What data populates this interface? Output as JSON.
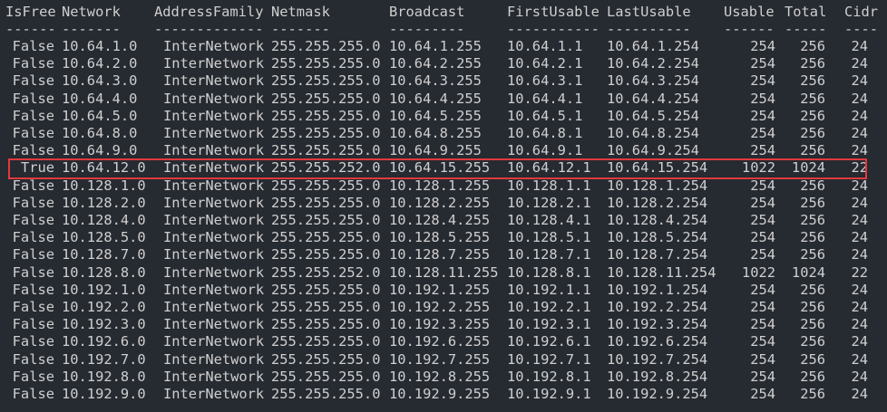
{
  "columns": [
    "IsFree",
    "Network",
    "AddressFamily",
    "Netmask",
    "Broadcast",
    "FirstUsable",
    "LastUsable",
    "Usable",
    "Total",
    "Cidr"
  ],
  "separators": [
    "------",
    "-------",
    "-------------",
    "-------",
    "---------",
    "-----------",
    "----------",
    "------",
    "-----",
    "----"
  ],
  "highlight_color": "#e0393e",
  "highlighted_row": 7,
  "rows": [
    [
      "False",
      "10.64.1.0",
      "InterNetwork",
      "255.255.255.0",
      "10.64.1.255",
      "10.64.1.1",
      "10.64.1.254",
      "254",
      "256",
      "24"
    ],
    [
      "False",
      "10.64.2.0",
      "InterNetwork",
      "255.255.255.0",
      "10.64.2.255",
      "10.64.2.1",
      "10.64.2.254",
      "254",
      "256",
      "24"
    ],
    [
      "False",
      "10.64.3.0",
      "InterNetwork",
      "255.255.255.0",
      "10.64.3.255",
      "10.64.3.1",
      "10.64.3.254",
      "254",
      "256",
      "24"
    ],
    [
      "False",
      "10.64.4.0",
      "InterNetwork",
      "255.255.255.0",
      "10.64.4.255",
      "10.64.4.1",
      "10.64.4.254",
      "254",
      "256",
      "24"
    ],
    [
      "False",
      "10.64.5.0",
      "InterNetwork",
      "255.255.255.0",
      "10.64.5.255",
      "10.64.5.1",
      "10.64.5.254",
      "254",
      "256",
      "24"
    ],
    [
      "False",
      "10.64.8.0",
      "InterNetwork",
      "255.255.255.0",
      "10.64.8.255",
      "10.64.8.1",
      "10.64.8.254",
      "254",
      "256",
      "24"
    ],
    [
      "False",
      "10.64.9.0",
      "InterNetwork",
      "255.255.255.0",
      "10.64.9.255",
      "10.64.9.1",
      "10.64.9.254",
      "254",
      "256",
      "24"
    ],
    [
      "True",
      "10.64.12.0",
      "InterNetwork",
      "255.255.252.0",
      "10.64.15.255",
      "10.64.12.1",
      "10.64.15.254",
      "1022",
      "1024",
      "22"
    ],
    [
      "False",
      "10.128.1.0",
      "InterNetwork",
      "255.255.255.0",
      "10.128.1.255",
      "10.128.1.1",
      "10.128.1.254",
      "254",
      "256",
      "24"
    ],
    [
      "False",
      "10.128.2.0",
      "InterNetwork",
      "255.255.255.0",
      "10.128.2.255",
      "10.128.2.1",
      "10.128.2.254",
      "254",
      "256",
      "24"
    ],
    [
      "False",
      "10.128.4.0",
      "InterNetwork",
      "255.255.255.0",
      "10.128.4.255",
      "10.128.4.1",
      "10.128.4.254",
      "254",
      "256",
      "24"
    ],
    [
      "False",
      "10.128.5.0",
      "InterNetwork",
      "255.255.255.0",
      "10.128.5.255",
      "10.128.5.1",
      "10.128.5.254",
      "254",
      "256",
      "24"
    ],
    [
      "False",
      "10.128.7.0",
      "InterNetwork",
      "255.255.255.0",
      "10.128.7.255",
      "10.128.7.1",
      "10.128.7.254",
      "254",
      "256",
      "24"
    ],
    [
      "False",
      "10.128.8.0",
      "InterNetwork",
      "255.255.252.0",
      "10.128.11.255",
      "10.128.8.1",
      "10.128.11.254",
      "1022",
      "1024",
      "22"
    ],
    [
      "False",
      "10.192.1.0",
      "InterNetwork",
      "255.255.255.0",
      "10.192.1.255",
      "10.192.1.1",
      "10.192.1.254",
      "254",
      "256",
      "24"
    ],
    [
      "False",
      "10.192.2.0",
      "InterNetwork",
      "255.255.255.0",
      "10.192.2.255",
      "10.192.2.1",
      "10.192.2.254",
      "254",
      "256",
      "24"
    ],
    [
      "False",
      "10.192.3.0",
      "InterNetwork",
      "255.255.255.0",
      "10.192.3.255",
      "10.192.3.1",
      "10.192.3.254",
      "254",
      "256",
      "24"
    ],
    [
      "False",
      "10.192.6.0",
      "InterNetwork",
      "255.255.255.0",
      "10.192.6.255",
      "10.192.6.1",
      "10.192.6.254",
      "254",
      "256",
      "24"
    ],
    [
      "False",
      "10.192.7.0",
      "InterNetwork",
      "255.255.255.0",
      "10.192.7.255",
      "10.192.7.1",
      "10.192.7.254",
      "254",
      "256",
      "24"
    ],
    [
      "False",
      "10.192.8.0",
      "InterNetwork",
      "255.255.255.0",
      "10.192.8.255",
      "10.192.8.1",
      "10.192.8.254",
      "254",
      "256",
      "24"
    ],
    [
      "False",
      "10.192.9.0",
      "InterNetwork",
      "255.255.255.0",
      "10.192.9.255",
      "10.192.9.1",
      "10.192.9.254",
      "254",
      "256",
      "24"
    ]
  ]
}
